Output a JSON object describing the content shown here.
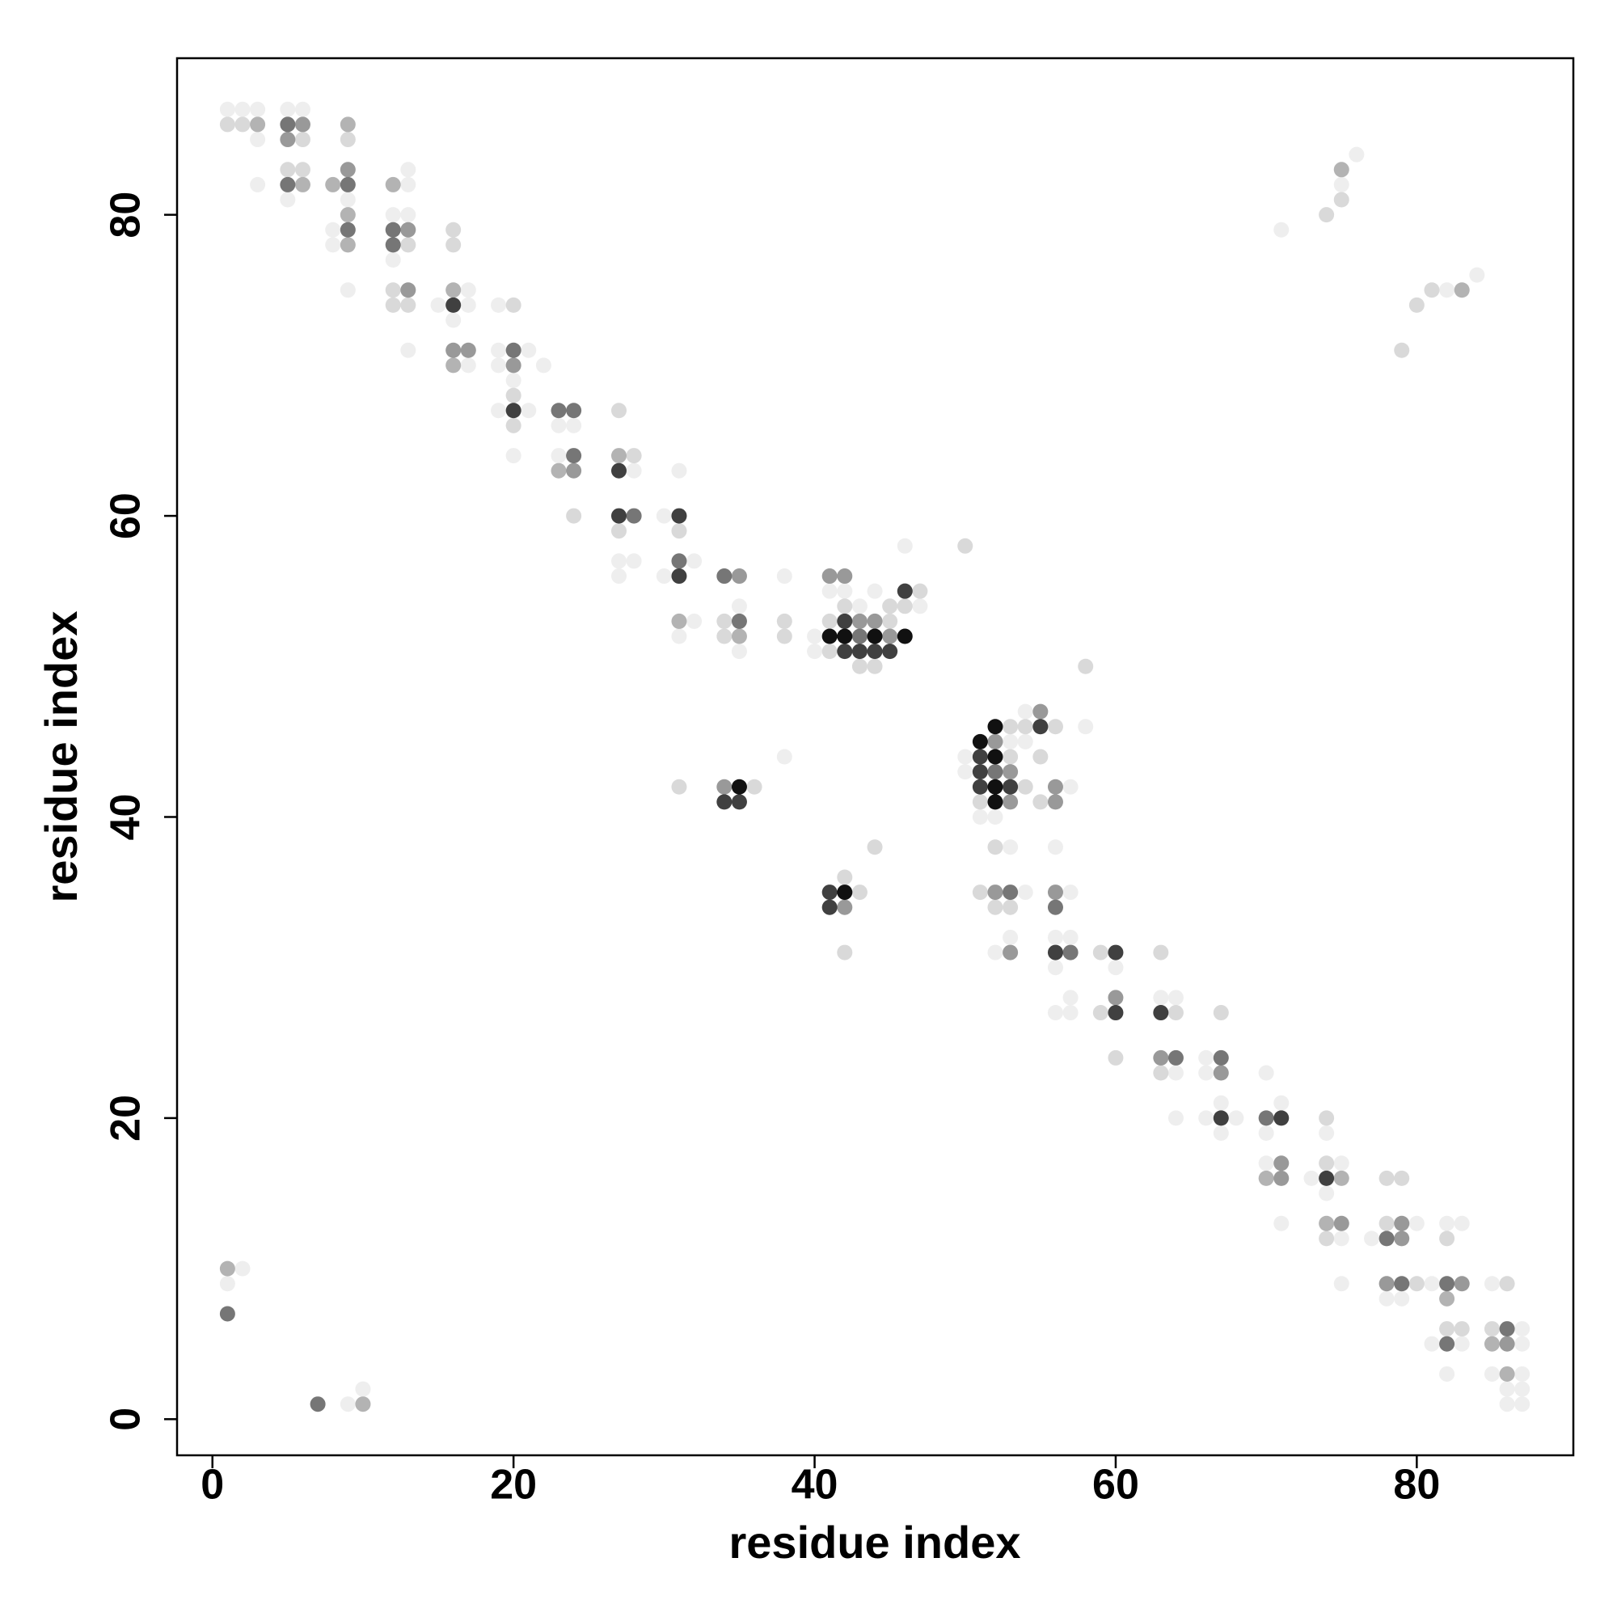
{
  "chart_data": {
    "type": "scatter",
    "xlabel": "residue index",
    "ylabel": "residue index",
    "xlim": [
      -2.35,
      90.4
    ],
    "ylim": [
      -2.4,
      90.4
    ],
    "xticks": [
      0,
      20,
      40,
      60,
      80
    ],
    "yticks": [
      0,
      20,
      40,
      60,
      80
    ],
    "grid": false,
    "series": [
      {
        "color": "#eeeeee",
        "x": [
          1,
          2,
          3,
          5,
          6,
          3,
          13,
          3,
          13,
          5,
          9,
          12,
          13,
          8,
          8,
          12,
          9,
          17,
          15,
          17,
          19,
          16,
          13,
          19,
          21,
          17,
          19,
          22,
          20,
          19,
          21,
          23,
          24,
          20,
          23,
          28,
          31,
          30,
          27,
          28,
          32,
          27,
          30,
          38,
          41,
          42,
          44,
          35,
          43,
          47,
          32,
          31,
          40,
          35,
          40,
          46,
          54,
          58,
          53,
          54,
          38,
          50,
          50,
          57,
          51,
          52,
          53,
          56,
          54,
          57,
          53,
          56,
          57,
          52,
          56,
          60,
          57,
          63,
          64,
          56,
          57,
          66,
          64,
          66,
          70,
          67,
          71,
          64,
          66,
          68,
          67,
          70,
          74,
          70,
          75,
          73,
          74,
          71,
          80,
          82,
          83,
          75,
          77,
          75,
          81,
          85,
          78,
          79,
          87,
          81,
          83,
          87,
          82,
          85,
          87,
          86,
          87,
          86,
          87,
          2,
          1,
          9,
          10,
          71,
          75,
          76,
          82,
          84
        ],
        "values": [
          87,
          87,
          87,
          87,
          87,
          85,
          83,
          82,
          82,
          81,
          81,
          80,
          80,
          79,
          78,
          77,
          75,
          75,
          74,
          74,
          74,
          73,
          71,
          71,
          71,
          70,
          70,
          70,
          69,
          67,
          67,
          66,
          66,
          64,
          64,
          63,
          63,
          60,
          57,
          57,
          57,
          56,
          56,
          56,
          55,
          55,
          55,
          54,
          54,
          54,
          53,
          52,
          52,
          51,
          51,
          58,
          47,
          46,
          45,
          45,
          44,
          44,
          43,
          42,
          40,
          40,
          38,
          38,
          35,
          35,
          32,
          32,
          32,
          31,
          30,
          30,
          28,
          28,
          28,
          27,
          27,
          24,
          23,
          23,
          23,
          21,
          21,
          20,
          20,
          20,
          19,
          19,
          19,
          17,
          17,
          16,
          15,
          13,
          13,
          13,
          13,
          12,
          12,
          9,
          9,
          9,
          8,
          8,
          6,
          5,
          5,
          5,
          3,
          3,
          3,
          2,
          2,
          1,
          1,
          10,
          9,
          1,
          2,
          79,
          82,
          84,
          75,
          76
        ]
      },
      {
        "color": "#d9d9d9",
        "x": [
          1,
          2,
          6,
          9,
          5,
          6,
          16,
          13,
          16,
          12,
          12,
          13,
          20,
          20,
          27,
          20,
          28,
          24,
          27,
          31,
          47,
          42,
          45,
          46,
          34,
          38,
          41,
          45,
          34,
          38,
          41,
          43,
          44,
          58,
          50,
          53,
          54,
          56,
          53,
          55,
          31,
          36,
          54,
          51,
          55,
          44,
          52,
          42,
          43,
          51,
          52,
          53,
          42,
          59,
          63,
          59,
          64,
          67,
          60,
          63,
          74,
          74,
          78,
          79,
          78,
          74,
          82,
          80,
          86,
          82,
          83,
          85,
          74,
          75,
          79,
          80,
          81
        ],
        "values": [
          86,
          86,
          85,
          85,
          83,
          83,
          79,
          78,
          78,
          75,
          74,
          74,
          74,
          68,
          67,
          66,
          64,
          60,
          59,
          59,
          55,
          54,
          54,
          54,
          53,
          53,
          53,
          53,
          52,
          52,
          51,
          50,
          50,
          50,
          58,
          46,
          46,
          46,
          44,
          44,
          42,
          42,
          42,
          41,
          41,
          38,
          38,
          36,
          35,
          35,
          34,
          34,
          31,
          31,
          31,
          27,
          27,
          27,
          24,
          23,
          20,
          17,
          16,
          16,
          13,
          12,
          12,
          9,
          9,
          6,
          6,
          6,
          80,
          81,
          71,
          74,
          75
        ]
      },
      {
        "color": "#b3b3b3",
        "x": [
          3,
          9,
          6,
          8,
          12,
          9,
          9,
          16,
          16,
          27,
          23,
          31,
          35,
          70,
          75,
          74,
          82,
          85,
          86,
          1,
          10,
          75,
          83
        ],
        "values": [
          86,
          86,
          82,
          82,
          82,
          80,
          78,
          75,
          70,
          64,
          63,
          53,
          52,
          16,
          16,
          13,
          8,
          5,
          3,
          10,
          1,
          83,
          75
        ]
      },
      {
        "color": "#999999",
        "x": [
          5,
          6,
          9,
          13,
          13,
          16,
          17,
          20,
          24,
          35,
          41,
          42,
          43,
          44,
          45,
          55,
          52,
          53,
          34,
          56,
          53,
          56,
          52,
          56,
          42,
          53,
          60,
          63,
          67,
          71,
          71,
          75,
          79,
          79,
          78,
          83,
          86
        ],
        "values": [
          85,
          86,
          83,
          79,
          75,
          71,
          71,
          70,
          63,
          56,
          56,
          56,
          53,
          53,
          52,
          47,
          45,
          43,
          42,
          42,
          41,
          41,
          35,
          35,
          34,
          31,
          28,
          24,
          23,
          17,
          16,
          13,
          13,
          12,
          9,
          9,
          5
        ]
      },
      {
        "color": "#767676",
        "x": [
          5,
          5,
          9,
          9,
          12,
          12,
          20,
          23,
          24,
          24,
          28,
          31,
          34,
          35,
          43,
          52,
          53,
          56,
          57,
          64,
          67,
          70,
          78,
          79,
          82,
          86,
          82,
          1,
          7
        ],
        "values": [
          86,
          82,
          82,
          79,
          79,
          78,
          71,
          67,
          67,
          64,
          60,
          57,
          56,
          53,
          52,
          43,
          35,
          34,
          31,
          24,
          24,
          20,
          12,
          9,
          9,
          6,
          5,
          7,
          1
        ]
      },
      {
        "color": "#404040",
        "x": [
          16,
          20,
          27,
          27,
          31,
          31,
          46,
          42,
          42,
          43,
          44,
          45,
          55,
          51,
          51,
          51,
          53,
          34,
          35,
          41,
          41,
          56,
          60,
          60,
          63,
          67,
          71,
          74
        ],
        "values": [
          74,
          67,
          63,
          60,
          60,
          56,
          55,
          53,
          51,
          51,
          51,
          51,
          46,
          44,
          43,
          42,
          42,
          41,
          41,
          35,
          34,
          31,
          31,
          27,
          27,
          20,
          20,
          16
        ]
      },
      {
        "color": "#111111",
        "x": [
          41,
          42,
          44,
          46,
          52,
          51,
          52,
          35,
          52,
          52,
          42
        ],
        "values": [
          52,
          52,
          52,
          52,
          46,
          45,
          44,
          42,
          42,
          41,
          35
        ]
      }
    ]
  }
}
